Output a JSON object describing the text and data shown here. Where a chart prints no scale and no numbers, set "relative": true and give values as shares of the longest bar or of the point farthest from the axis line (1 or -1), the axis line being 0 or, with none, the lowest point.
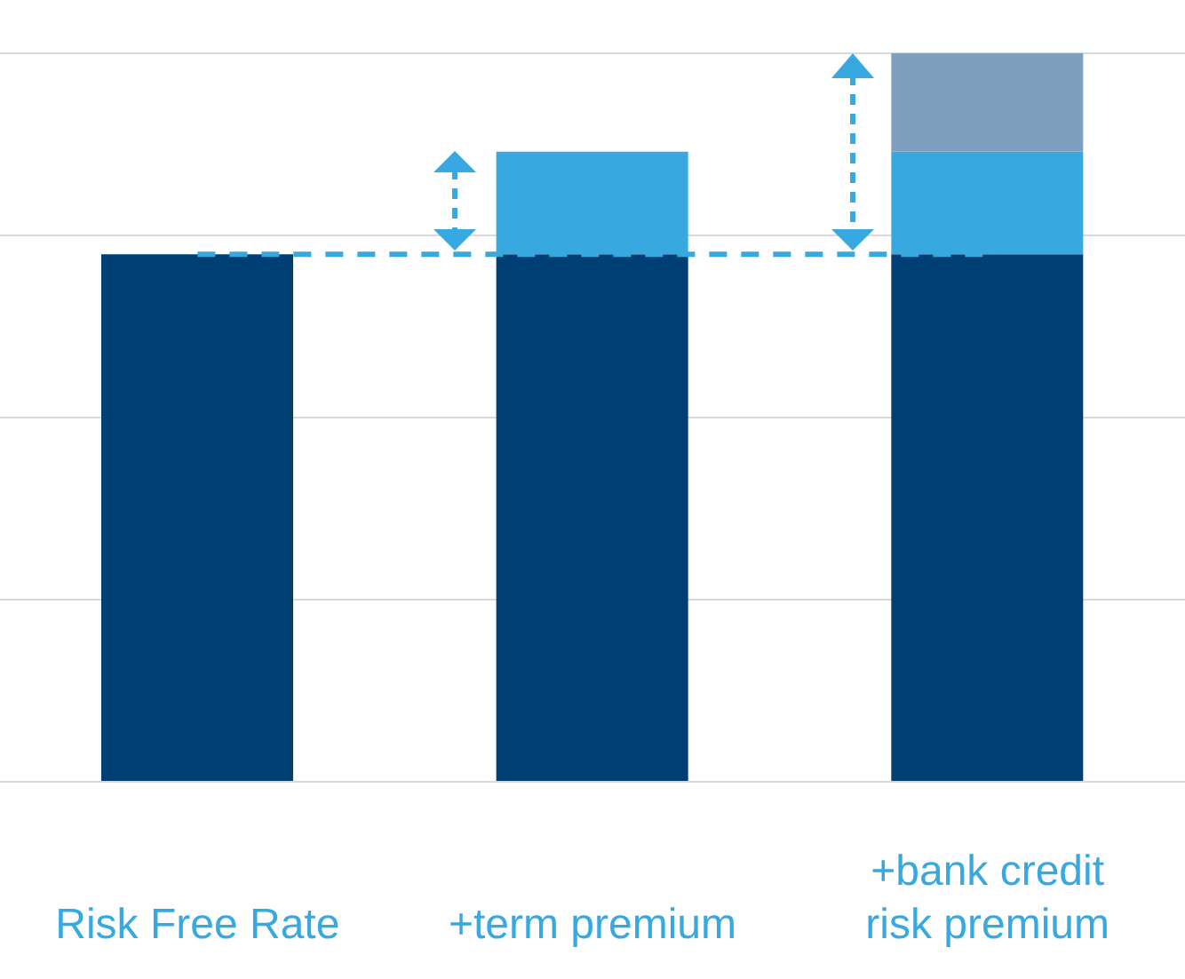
{
  "chart_data": {
    "type": "bar",
    "stacked": true,
    "relative": true,
    "grid": "y",
    "categories": [
      "Risk Free Rate",
      "+term premium",
      "+bank credit risk premium"
    ],
    "series": [
      {
        "color": "#003f73",
        "values": [
          0.724,
          0.724,
          0.724
        ]
      },
      {
        "color": "#38a9e0",
        "values": [
          null,
          0.141,
          0.141
        ]
      },
      {
        "color": "#7f9fbf",
        "values": [
          null,
          null,
          0.135
        ]
      }
    ],
    "ref_lines": [
      {
        "axis": "y",
        "value": 0.724,
        "color": "#38a9e0",
        "line_style": "dashed"
      }
    ]
  }
}
